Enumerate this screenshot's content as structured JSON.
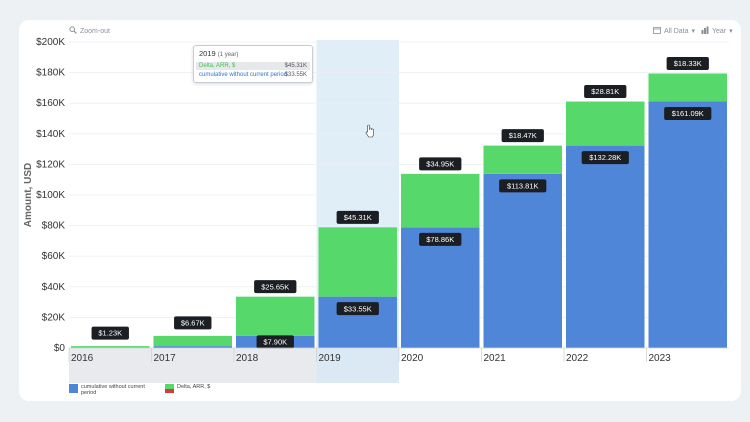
{
  "toolbar": {
    "zoom_label": "Zoom-out",
    "range_label": "All Data",
    "period_label": "Year"
  },
  "tooltip": {
    "title": "2019",
    "subtitle": "(1 year)",
    "rows": [
      {
        "label": "Delta, ARR, $",
        "value": "$45.31K"
      },
      {
        "label": "cumulative without current period",
        "value": "$33.55K"
      }
    ]
  },
  "legend": [
    {
      "label": "cumulative without current period",
      "color": "#4f86d8"
    },
    {
      "label": "Delta, ARR, $",
      "color": "#56d96a",
      "color2": "#d83a3a"
    }
  ],
  "colors": {
    "base": "#4f86d8",
    "delta": "#56d96a",
    "highlight": "#d6e8f6"
  },
  "chart_data": {
    "type": "bar",
    "stacked": true,
    "categories": [
      "2016",
      "2017",
      "2018",
      "2019",
      "2020",
      "2021",
      "2022",
      "2023"
    ],
    "series": [
      {
        "name": "cumulative without current period",
        "values": [
          0,
          1230,
          7900,
          33550,
          78860,
          113810,
          132280,
          161090
        ],
        "labels": [
          "",
          "",
          "$7.90K",
          "$33.55K",
          "$78.86K",
          "$113.81K",
          "$132.28K",
          "$161.09K"
        ]
      },
      {
        "name": "Delta, ARR, $",
        "values": [
          1230,
          6670,
          25650,
          45310,
          34950,
          18470,
          28810,
          18330
        ],
        "labels": [
          "$1.23K",
          "$6.67K",
          "$25.65K",
          "$45.31K",
          "$34.95K",
          "$18.47K",
          "$28.81K",
          "$18.33K"
        ]
      }
    ],
    "ylabel": "Amount, USD",
    "ylim": [
      0,
      200000
    ],
    "yticks": [
      0,
      20000,
      40000,
      60000,
      80000,
      100000,
      120000,
      140000,
      160000,
      180000,
      200000
    ],
    "ytick_labels": [
      "$0",
      "$20K",
      "$40K",
      "$60K",
      "$80K",
      "$100K",
      "$120K",
      "$140K",
      "$160K",
      "$180K",
      "$200K"
    ],
    "highlighted_category": "2019",
    "grid": true
  }
}
